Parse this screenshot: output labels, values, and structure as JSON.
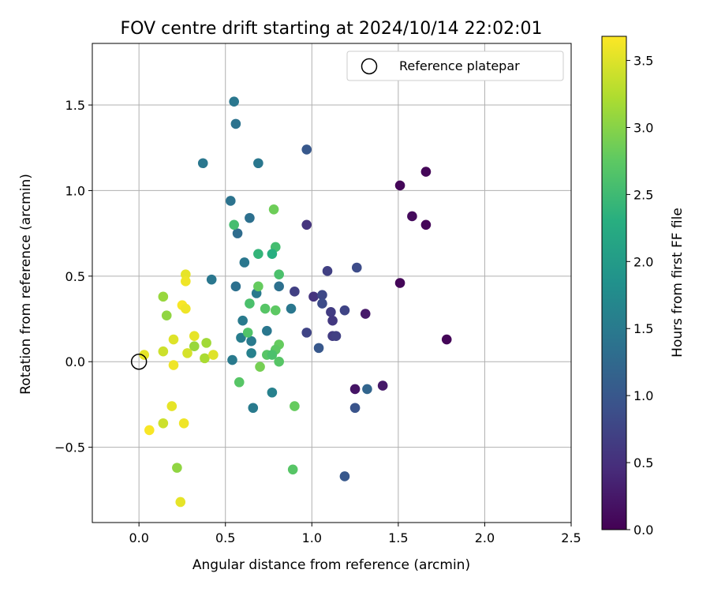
{
  "chart_data": {
    "type": "scatter",
    "title": "FOV centre drift starting at 2024/10/14 22:02:01",
    "xlabel": "Angular distance from reference (arcmin)",
    "ylabel": "Rotation from reference (arcmin)",
    "xlim": [
      -0.27,
      2.5
    ],
    "ylim": [
      -0.94,
      1.86
    ],
    "xticks": [
      0.0,
      0.5,
      1.0,
      1.5,
      2.0,
      2.5
    ],
    "xtick_labels": [
      "0.0",
      "0.5",
      "1.0",
      "1.5",
      "2.0",
      "2.5"
    ],
    "yticks": [
      -0.5,
      0.0,
      0.5,
      1.0,
      1.5
    ],
    "ytick_labels": [
      "−0.5",
      "0.0",
      "0.5",
      "1.0",
      "1.5"
    ],
    "grid": true,
    "legend": {
      "placement": "top-right",
      "entries": [
        "Reference platepar"
      ]
    },
    "reference_point": {
      "x": 0.0,
      "y": 0.0,
      "marker": "open-circle"
    },
    "colorbar": {
      "label": "Hours from first FF file",
      "colormap": "viridis",
      "range": [
        0.0,
        3.68
      ],
      "ticks": [
        0.0,
        0.5,
        1.0,
        1.5,
        2.0,
        2.5,
        3.0,
        3.5
      ],
      "tick_labels": [
        "0.0",
        "0.5",
        "1.0",
        "1.5",
        "2.0",
        "2.5",
        "3.0",
        "3.5"
      ]
    },
    "points": [
      {
        "x": 1.51,
        "y": 1.03,
        "c": 0.05
      },
      {
        "x": 1.66,
        "y": 1.11,
        "c": 0.05
      },
      {
        "x": 1.58,
        "y": 0.85,
        "c": 0.1
      },
      {
        "x": 1.66,
        "y": 0.8,
        "c": 0.05
      },
      {
        "x": 1.51,
        "y": 0.46,
        "c": 0.05
      },
      {
        "x": 1.78,
        "y": 0.13,
        "c": 0.05
      },
      {
        "x": 1.31,
        "y": 0.28,
        "c": 0.25
      },
      {
        "x": 1.25,
        "y": -0.16,
        "c": 0.2
      },
      {
        "x": 1.41,
        "y": -0.14,
        "c": 0.25
      },
      {
        "x": 1.26,
        "y": 0.55,
        "c": 0.85
      },
      {
        "x": 1.19,
        "y": 0.3,
        "c": 0.75
      },
      {
        "x": 1.09,
        "y": 0.53,
        "c": 0.7
      },
      {
        "x": 0.97,
        "y": 0.8,
        "c": 0.55
      },
      {
        "x": 0.9,
        "y": 0.41,
        "c": 0.7
      },
      {
        "x": 1.01,
        "y": 0.38,
        "c": 0.55
      },
      {
        "x": 1.06,
        "y": 0.39,
        "c": 0.8
      },
      {
        "x": 1.06,
        "y": 0.34,
        "c": 0.85
      },
      {
        "x": 1.11,
        "y": 0.29,
        "c": 0.65
      },
      {
        "x": 1.12,
        "y": 0.24,
        "c": 0.6
      },
      {
        "x": 1.12,
        "y": 0.15,
        "c": 0.65
      },
      {
        "x": 1.14,
        "y": 0.15,
        "c": 0.7
      },
      {
        "x": 0.97,
        "y": 0.17,
        "c": 0.75
      },
      {
        "x": 1.04,
        "y": 0.08,
        "c": 1.0
      },
      {
        "x": 1.25,
        "y": -0.27,
        "c": 0.95
      },
      {
        "x": 1.32,
        "y": -0.16,
        "c": 1.2
      },
      {
        "x": 1.19,
        "y": -0.67,
        "c": 1.0
      },
      {
        "x": 0.97,
        "y": 1.24,
        "c": 1.0
      },
      {
        "x": 0.55,
        "y": 1.52,
        "c": 1.45
      },
      {
        "x": 0.56,
        "y": 1.39,
        "c": 1.4
      },
      {
        "x": 0.37,
        "y": 1.16,
        "c": 1.45
      },
      {
        "x": 0.69,
        "y": 1.16,
        "c": 1.45
      },
      {
        "x": 0.53,
        "y": 0.94,
        "c": 1.4
      },
      {
        "x": 0.64,
        "y": 0.84,
        "c": 1.35
      },
      {
        "x": 0.57,
        "y": 0.75,
        "c": 1.3
      },
      {
        "x": 0.61,
        "y": 0.58,
        "c": 1.45
      },
      {
        "x": 0.42,
        "y": 0.48,
        "c": 1.45
      },
      {
        "x": 0.56,
        "y": 0.44,
        "c": 1.35
      },
      {
        "x": 0.68,
        "y": 0.4,
        "c": 1.5
      },
      {
        "x": 0.81,
        "y": 0.44,
        "c": 1.35
      },
      {
        "x": 0.88,
        "y": 0.31,
        "c": 1.45
      },
      {
        "x": 0.6,
        "y": 0.24,
        "c": 1.5
      },
      {
        "x": 0.74,
        "y": 0.18,
        "c": 1.45
      },
      {
        "x": 0.59,
        "y": 0.14,
        "c": 1.55
      },
      {
        "x": 0.65,
        "y": 0.12,
        "c": 1.5
      },
      {
        "x": 0.65,
        "y": 0.05,
        "c": 1.6
      },
      {
        "x": 0.54,
        "y": 0.01,
        "c": 1.5
      },
      {
        "x": 0.66,
        "y": -0.27,
        "c": 1.5
      },
      {
        "x": 0.77,
        "y": -0.18,
        "c": 1.6
      },
      {
        "x": 0.55,
        "y": 0.8,
        "c": 2.55
      },
      {
        "x": 0.78,
        "y": 0.89,
        "c": 2.85
      },
      {
        "x": 0.79,
        "y": 0.67,
        "c": 2.55
      },
      {
        "x": 0.77,
        "y": 0.63,
        "c": 2.3
      },
      {
        "x": 0.69,
        "y": 0.63,
        "c": 2.4
      },
      {
        "x": 0.81,
        "y": 0.51,
        "c": 2.6
      },
      {
        "x": 0.69,
        "y": 0.44,
        "c": 2.8
      },
      {
        "x": 0.64,
        "y": 0.34,
        "c": 2.6
      },
      {
        "x": 0.73,
        "y": 0.31,
        "c": 2.7
      },
      {
        "x": 0.79,
        "y": 0.3,
        "c": 2.75
      },
      {
        "x": 0.63,
        "y": 0.17,
        "c": 2.65
      },
      {
        "x": 0.81,
        "y": 0.1,
        "c": 2.8
      },
      {
        "x": 0.79,
        "y": 0.07,
        "c": 2.75
      },
      {
        "x": 0.74,
        "y": 0.04,
        "c": 2.7
      },
      {
        "x": 0.77,
        "y": 0.04,
        "c": 2.6
      },
      {
        "x": 0.81,
        "y": 0.0,
        "c": 2.7
      },
      {
        "x": 0.7,
        "y": -0.03,
        "c": 2.9
      },
      {
        "x": 0.58,
        "y": -0.12,
        "c": 2.7
      },
      {
        "x": 0.9,
        "y": -0.26,
        "c": 2.8
      },
      {
        "x": 0.89,
        "y": -0.63,
        "c": 2.7
      },
      {
        "x": 0.14,
        "y": 0.38,
        "c": 3.1
      },
      {
        "x": 0.16,
        "y": 0.27,
        "c": 3.05
      },
      {
        "x": 0.32,
        "y": 0.09,
        "c": 3.1
      },
      {
        "x": 0.39,
        "y": 0.11,
        "c": 3.15
      },
      {
        "x": 0.38,
        "y": 0.02,
        "c": 3.2
      },
      {
        "x": 0.22,
        "y": -0.62,
        "c": 3.05
      },
      {
        "x": 0.27,
        "y": 0.51,
        "c": 3.55
      },
      {
        "x": 0.27,
        "y": 0.47,
        "c": 3.6
      },
      {
        "x": 0.25,
        "y": 0.33,
        "c": 3.65
      },
      {
        "x": 0.27,
        "y": 0.31,
        "c": 3.6
      },
      {
        "x": 0.32,
        "y": 0.15,
        "c": 3.55
      },
      {
        "x": 0.2,
        "y": 0.13,
        "c": 3.5
      },
      {
        "x": 0.14,
        "y": 0.06,
        "c": 3.4
      },
      {
        "x": 0.28,
        "y": 0.05,
        "c": 3.45
      },
      {
        "x": 0.43,
        "y": 0.04,
        "c": 3.5
      },
      {
        "x": 0.03,
        "y": 0.04,
        "c": 3.55
      },
      {
        "x": 0.2,
        "y": -0.02,
        "c": 3.6
      },
      {
        "x": 0.19,
        "y": -0.26,
        "c": 3.55
      },
      {
        "x": 0.14,
        "y": -0.36,
        "c": 3.4
      },
      {
        "x": 0.26,
        "y": -0.36,
        "c": 3.6
      },
      {
        "x": 0.06,
        "y": -0.4,
        "c": 3.65
      },
      {
        "x": 0.24,
        "y": -0.82,
        "c": 3.55
      }
    ]
  }
}
